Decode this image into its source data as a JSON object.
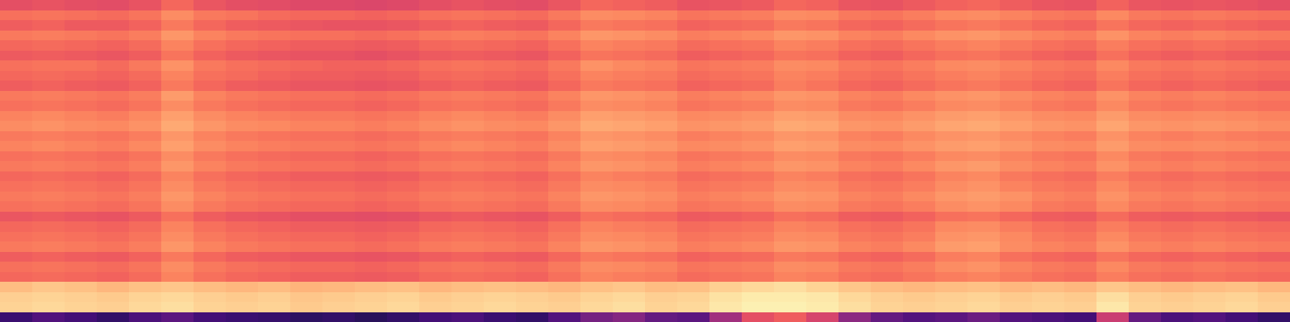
{
  "chart_data": {
    "type": "heatmap",
    "color": "magma",
    "zlim": [
      0,
      100
    ],
    "tick_labels": false,
    "values": [
      [
        62,
        63,
        62,
        61,
        63,
        68,
        64,
        62,
        61,
        60,
        60,
        59,
        60,
        62,
        63,
        62,
        61,
        64,
        68,
        67,
        66,
        63,
        64,
        65,
        68,
        67,
        64,
        63,
        65,
        67,
        68,
        66,
        64,
        63,
        67,
        64,
        63,
        64,
        63,
        62
      ],
      [
        70,
        71,
        70,
        69,
        71,
        76,
        72,
        71,
        69,
        68,
        68,
        67,
        68,
        70,
        71,
        70,
        69,
        72,
        76,
        75,
        74,
        71,
        72,
        73,
        76,
        75,
        72,
        71,
        73,
        75,
        76,
        74,
        72,
        71,
        75,
        72,
        71,
        72,
        71,
        70
      ],
      [
        66,
        67,
        65,
        65,
        67,
        72,
        68,
        66,
        65,
        64,
        63,
        63,
        64,
        66,
        67,
        66,
        65,
        68,
        72,
        71,
        70,
        67,
        68,
        69,
        72,
        71,
        68,
        67,
        69,
        71,
        72,
        70,
        68,
        67,
        71,
        68,
        67,
        68,
        67,
        66
      ],
      [
        72,
        73,
        72,
        71,
        73,
        78,
        74,
        72,
        71,
        70,
        70,
        69,
        70,
        72,
        73,
        72,
        71,
        74,
        78,
        77,
        76,
        73,
        74,
        75,
        78,
        77,
        74,
        73,
        75,
        77,
        78,
        76,
        74,
        73,
        77,
        74,
        73,
        74,
        73,
        72
      ],
      [
        68,
        69,
        68,
        67,
        69,
        74,
        70,
        68,
        67,
        66,
        66,
        65,
        66,
        68,
        69,
        68,
        67,
        70,
        74,
        73,
        72,
        69,
        70,
        71,
        74,
        73,
        70,
        69,
        71,
        73,
        74,
        72,
        70,
        69,
        73,
        70,
        69,
        70,
        69,
        68
      ],
      [
        65,
        66,
        65,
        64,
        66,
        71,
        67,
        65,
        64,
        63,
        63,
        62,
        63,
        65,
        66,
        65,
        64,
        67,
        71,
        70,
        69,
        66,
        67,
        68,
        71,
        70,
        67,
        66,
        68,
        70,
        71,
        69,
        67,
        66,
        70,
        67,
        66,
        67,
        66,
        65
      ],
      [
        70,
        71,
        71,
        69,
        72,
        77,
        72,
        70,
        69,
        68,
        67,
        67,
        68,
        70,
        71,
        70,
        69,
        72,
        77,
        75,
        74,
        71,
        72,
        73,
        76,
        75,
        72,
        71,
        73,
        75,
        76,
        74,
        72,
        71,
        75,
        72,
        71,
        72,
        71,
        70
      ],
      [
        68,
        69,
        68,
        67,
        69,
        74,
        70,
        69,
        67,
        66,
        66,
        65,
        66,
        68,
        69,
        68,
        67,
        70,
        74,
        73,
        72,
        69,
        70,
        71,
        74,
        73,
        70,
        69,
        71,
        73,
        74,
        72,
        70,
        69,
        73,
        70,
        69,
        70,
        69,
        68
      ],
      [
        66,
        67,
        66,
        65,
        67,
        72,
        68,
        66,
        65,
        64,
        64,
        63,
        64,
        66,
        67,
        66,
        65,
        68,
        72,
        71,
        70,
        67,
        68,
        69,
        73,
        71,
        68,
        67,
        69,
        71,
        72,
        70,
        68,
        67,
        71,
        68,
        67,
        68,
        67,
        66
      ],
      [
        72,
        73,
        72,
        71,
        73,
        79,
        74,
        72,
        71,
        70,
        70,
        69,
        70,
        72,
        73,
        72,
        71,
        74,
        78,
        77,
        76,
        73,
        74,
        75,
        78,
        77,
        74,
        73,
        75,
        77,
        78,
        76,
        74,
        73,
        77,
        74,
        73,
        74,
        73,
        72
      ],
      [
        70,
        71,
        70,
        69,
        71,
        76,
        72,
        70,
        69,
        68,
        68,
        67,
        68,
        70,
        71,
        70,
        69,
        72,
        76,
        75,
        74,
        71,
        72,
        73,
        76,
        75,
        72,
        71,
        73,
        75,
        76,
        74,
        72,
        71,
        75,
        72,
        71,
        72,
        71,
        70
      ],
      [
        74,
        75,
        74,
        73,
        75,
        80,
        76,
        74,
        73,
        72,
        72,
        71,
        72,
        74,
        75,
        74,
        73,
        76,
        80,
        79,
        78,
        75,
        76,
        77,
        80,
        79,
        76,
        75,
        77,
        79,
        80,
        78,
        76,
        75,
        79,
        76,
        75,
        76,
        75,
        74
      ],
      [
        76,
        77,
        76,
        75,
        77,
        82,
        78,
        76,
        75,
        74,
        74,
        73,
        74,
        76,
        77,
        76,
        75,
        78,
        82,
        81,
        80,
        77,
        78,
        79,
        82,
        81,
        78,
        77,
        79,
        81,
        82,
        80,
        78,
        77,
        81,
        78,
        77,
        78,
        77,
        76
      ],
      [
        72,
        73,
        72,
        71,
        73,
        78,
        74,
        72,
        71,
        70,
        70,
        69,
        70,
        72,
        73,
        72,
        71,
        74,
        78,
        77,
        76,
        73,
        74,
        75,
        78,
        77,
        74,
        73,
        75,
        77,
        78,
        76,
        74,
        73,
        77,
        74,
        73,
        74,
        73,
        72
      ],
      [
        74,
        75,
        74,
        73,
        75,
        80,
        76,
        74,
        73,
        72,
        72,
        71,
        72,
        74,
        75,
        74,
        73,
        76,
        80,
        79,
        78,
        75,
        76,
        77,
        80,
        79,
        76,
        75,
        77,
        79,
        80,
        78,
        76,
        75,
        79,
        76,
        75,
        76,
        75,
        74
      ],
      [
        70,
        71,
        70,
        69,
        71,
        76,
        72,
        70,
        69,
        68,
        68,
        67,
        68,
        70,
        71,
        70,
        69,
        72,
        76,
        75,
        74,
        71,
        72,
        73,
        76,
        75,
        72,
        71,
        73,
        75,
        76,
        74,
        72,
        71,
        75,
        72,
        71,
        72,
        71,
        70
      ],
      [
        72,
        73,
        72,
        71,
        73,
        78,
        74,
        72,
        71,
        70,
        70,
        69,
        70,
        72,
        73,
        72,
        71,
        74,
        78,
        77,
        76,
        73,
        74,
        75,
        78,
        77,
        74,
        73,
        75,
        78,
        79,
        76,
        74,
        73,
        77,
        74,
        73,
        74,
        73,
        72
      ],
      [
        68,
        69,
        68,
        67,
        69,
        74,
        70,
        68,
        67,
        66,
        66,
        65,
        66,
        68,
        69,
        68,
        67,
        70,
        74,
        73,
        72,
        69,
        70,
        71,
        74,
        73,
        70,
        69,
        71,
        74,
        75,
        72,
        70,
        69,
        73,
        70,
        69,
        70,
        69,
        68
      ],
      [
        70,
        71,
        70,
        69,
        71,
        76,
        72,
        70,
        69,
        68,
        68,
        67,
        68,
        70,
        71,
        70,
        69,
        72,
        76,
        75,
        74,
        71,
        72,
        73,
        76,
        75,
        72,
        71,
        73,
        76,
        77,
        74,
        72,
        71,
        75,
        72,
        71,
        72,
        71,
        70
      ],
      [
        72,
        73,
        72,
        71,
        73,
        78,
        74,
        72,
        71,
        70,
        70,
        69,
        70,
        72,
        73,
        72,
        71,
        74,
        78,
        77,
        76,
        73,
        74,
        75,
        78,
        77,
        74,
        73,
        75,
        78,
        79,
        77,
        74,
        73,
        77,
        74,
        73,
        74,
        73,
        72
      ],
      [
        70,
        71,
        70,
        69,
        71,
        76,
        72,
        70,
        69,
        68,
        68,
        67,
        68,
        70,
        71,
        70,
        69,
        72,
        76,
        75,
        74,
        71,
        72,
        73,
        76,
        75,
        72,
        71,
        73,
        76,
        77,
        75,
        72,
        71,
        75,
        72,
        71,
        72,
        71,
        70
      ],
      [
        64,
        65,
        64,
        63,
        65,
        70,
        66,
        64,
        63,
        62,
        62,
        61,
        62,
        64,
        65,
        64,
        63,
        66,
        70,
        69,
        68,
        65,
        66,
        67,
        70,
        69,
        66,
        65,
        67,
        70,
        71,
        68,
        66,
        65,
        69,
        66,
        65,
        66,
        65,
        64
      ],
      [
        68,
        69,
        68,
        67,
        69,
        74,
        70,
        68,
        67,
        66,
        66,
        65,
        66,
        68,
        69,
        68,
        67,
        70,
        74,
        73,
        72,
        69,
        70,
        71,
        74,
        73,
        70,
        69,
        71,
        75,
        76,
        73,
        70,
        69,
        73,
        70,
        69,
        70,
        69,
        68
      ],
      [
        70,
        71,
        70,
        69,
        71,
        76,
        72,
        70,
        69,
        68,
        68,
        67,
        68,
        70,
        71,
        70,
        69,
        72,
        76,
        75,
        74,
        71,
        72,
        73,
        76,
        75,
        72,
        71,
        73,
        77,
        78,
        75,
        72,
        71,
        75,
        72,
        71,
        72,
        71,
        70
      ],
      [
        72,
        73,
        72,
        71,
        73,
        78,
        74,
        72,
        71,
        70,
        70,
        69,
        70,
        72,
        73,
        72,
        71,
        74,
        78,
        77,
        76,
        73,
        74,
        75,
        78,
        77,
        74,
        73,
        75,
        79,
        80,
        76,
        74,
        73,
        77,
        74,
        73,
        74,
        73,
        72
      ],
      [
        66,
        67,
        66,
        65,
        67,
        72,
        68,
        66,
        65,
        64,
        64,
        63,
        64,
        66,
        67,
        66,
        65,
        68,
        72,
        71,
        70,
        67,
        68,
        69,
        72,
        71,
        68,
        67,
        69,
        73,
        74,
        70,
        68,
        67,
        71,
        68,
        67,
        68,
        67,
        66
      ],
      [
        70,
        71,
        70,
        69,
        71,
        76,
        72,
        70,
        69,
        68,
        68,
        67,
        68,
        70,
        71,
        70,
        69,
        72,
        76,
        75,
        74,
        71,
        72,
        73,
        76,
        75,
        72,
        71,
        73,
        76,
        77,
        74,
        72,
        71,
        75,
        72,
        71,
        72,
        71,
        70
      ],
      [
        68,
        69,
        68,
        67,
        69,
        74,
        70,
        68,
        67,
        66,
        66,
        65,
        66,
        68,
        69,
        68,
        67,
        70,
        74,
        73,
        72,
        69,
        70,
        71,
        74,
        73,
        70,
        69,
        71,
        73,
        74,
        72,
        70,
        69,
        73,
        70,
        69,
        70,
        69,
        68
      ],
      [
        86,
        88,
        87,
        85,
        87,
        88,
        86,
        85,
        86,
        84,
        85,
        86,
        87,
        85,
        86,
        87,
        86,
        85,
        87,
        88,
        86,
        87,
        90,
        92,
        93,
        91,
        88,
        86,
        85,
        86,
        87,
        85,
        86,
        85,
        88,
        86,
        85,
        86,
        87,
        85
      ],
      [
        90,
        91,
        90,
        89,
        91,
        92,
        90,
        89,
        90,
        88,
        89,
        90,
        91,
        89,
        90,
        91,
        90,
        89,
        91,
        92,
        90,
        91,
        94,
        96,
        96,
        95,
        92,
        90,
        89,
        90,
        91,
        89,
        90,
        89,
        93,
        90,
        89,
        90,
        91,
        89
      ],
      [
        91,
        92,
        91,
        90,
        92,
        93,
        91,
        90,
        91,
        89,
        90,
        91,
        92,
        90,
        91,
        92,
        91,
        90,
        92,
        93,
        91,
        92,
        95,
        97,
        97,
        96,
        93,
        91,
        90,
        91,
        92,
        90,
        91,
        90,
        95,
        91,
        90,
        91,
        92,
        90
      ],
      [
        20,
        25,
        22,
        18,
        24,
        28,
        22,
        20,
        19,
        17,
        18,
        16,
        18,
        22,
        24,
        20,
        18,
        26,
        34,
        38,
        30,
        28,
        45,
        62,
        66,
        58,
        40,
        30,
        26,
        28,
        32,
        26,
        24,
        22,
        55,
        30,
        24,
        26,
        22,
        18
      ]
    ]
  }
}
